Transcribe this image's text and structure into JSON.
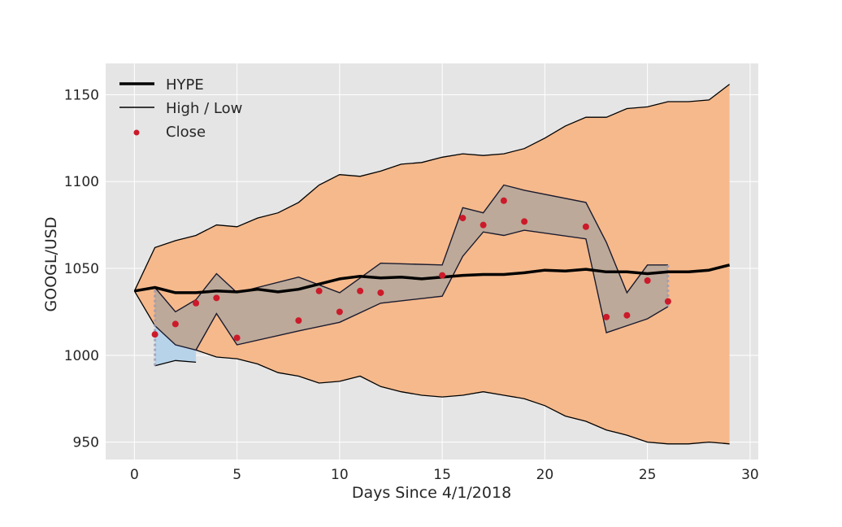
{
  "chart_data": {
    "type": "area",
    "title": "",
    "xlabel": "Days Since 4/1/2018",
    "ylabel": "GOOGL/USD",
    "xlim": [
      -1.4,
      30.4
    ],
    "ylim": [
      940,
      1168
    ],
    "xticks": [
      0,
      5,
      10,
      15,
      20,
      25,
      30
    ],
    "yticks": [
      950,
      1000,
      1050,
      1100,
      1150
    ],
    "grid": true,
    "legend_position": "top-left",
    "colors": {
      "plot_bg": "#e5e5e5",
      "grid": "#ffffff",
      "envelope_fill": "#f5b98c",
      "band_fill": "#b8a89a",
      "band_edge": "#1a1a2e",
      "low_fill": "#b7d3ea",
      "close_points": "#cc1a2a",
      "hype_line": "#000000",
      "whisker": "#9c9ab4"
    },
    "legend": [
      {
        "label": "HYPE",
        "style": "thick-line"
      },
      {
        "label": "High / Low",
        "style": "thin-line"
      },
      {
        "label": "Close",
        "style": "point"
      }
    ],
    "envelope": {
      "x": [
        0,
        1,
        2,
        3,
        4,
        5,
        6,
        7,
        8,
        9,
        10,
        11,
        12,
        13,
        14,
        15,
        16,
        17,
        18,
        19,
        20,
        21,
        22,
        23,
        24,
        25,
        26,
        27,
        28,
        29
      ],
      "upper": [
        1037,
        1062,
        1066,
        1069,
        1075,
        1074,
        1079,
        1082,
        1088,
        1098,
        1104,
        1103,
        1106,
        1110,
        1111,
        1114,
        1116,
        1115,
        1116,
        1119,
        1125,
        1132,
        1137,
        1137,
        1142,
        1143,
        1146,
        1146,
        1147,
        1156
      ],
      "lower": [
        1037,
        1017,
        1006,
        1003,
        999,
        998,
        995,
        990,
        988,
        984,
        985,
        988,
        982,
        979,
        977,
        976,
        977,
        979,
        977,
        975,
        971,
        965,
        962,
        957,
        954,
        950,
        949,
        949,
        950,
        949
      ]
    },
    "band": {
      "x": [
        1,
        2,
        3,
        4,
        5,
        8,
        10,
        12,
        15,
        16,
        17,
        18,
        19,
        22,
        23,
        24,
        25,
        26
      ],
      "upper": [
        1039,
        1025,
        1032,
        1047,
        1036,
        1045,
        1036,
        1053,
        1052,
        1085,
        1082,
        1098,
        1095,
        1088,
        1065,
        1036,
        1052,
        1052
      ],
      "lower": [
        1017,
        1006,
        1003,
        1024,
        1006,
        1014,
        1019,
        1030,
        1034,
        1057,
        1071,
        1069,
        1072,
        1067,
        1013,
        1017,
        1021,
        1028
      ]
    },
    "low_region": {
      "x": [
        1,
        2,
        3
      ],
      "upper": [
        1017,
        1006,
        1003
      ],
      "lower": [
        994,
        997,
        996
      ]
    },
    "hype": {
      "x": [
        0,
        1,
        2,
        3,
        4,
        5,
        6,
        7,
        8,
        9,
        10,
        11,
        12,
        13,
        14,
        15,
        16,
        17,
        18,
        19,
        20,
        21,
        22,
        23,
        24,
        25,
        26,
        27,
        28,
        29
      ],
      "y": [
        1037,
        1039,
        1036,
        1036,
        1037,
        1036.5,
        1038,
        1036.5,
        1038,
        1041,
        1044,
        1045.5,
        1044.5,
        1045,
        1044,
        1045,
        1046,
        1046.5,
        1046.5,
        1047.5,
        1049,
        1048.5,
        1049.5,
        1048,
        1048,
        1047,
        1048,
        1048,
        1049,
        1052
      ]
    },
    "close": {
      "x": [
        1,
        2,
        3,
        4,
        5,
        8,
        9,
        10,
        11,
        12,
        15,
        16,
        17,
        18,
        19,
        22,
        23,
        24,
        25,
        26
      ],
      "y": [
        1012,
        1018,
        1030,
        1033,
        1010,
        1020,
        1037,
        1025,
        1037,
        1036,
        1046,
        1079,
        1075,
        1089,
        1077,
        1074,
        1022,
        1023,
        1043,
        1031
      ]
    },
    "whiskers": [
      {
        "x": 1,
        "y": [
          994,
          1039
        ]
      },
      {
        "x": 26,
        "y": [
          1028,
          1052
        ]
      }
    ]
  }
}
